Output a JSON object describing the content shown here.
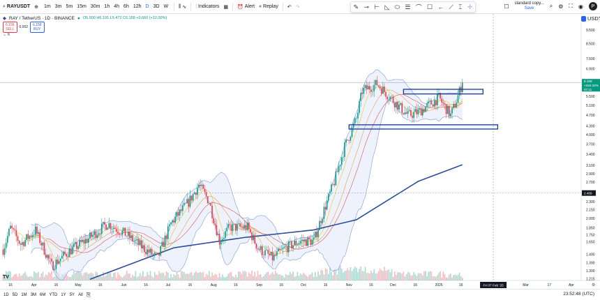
{
  "toolbar": {
    "symbol": "RAYUSDT",
    "intervals": [
      "1m",
      "3m",
      "5m",
      "15m",
      "30m",
      "1h",
      "4h",
      "6h",
      "12h",
      "D",
      "3D",
      "W"
    ],
    "active_interval": "D",
    "indicators": "Indicators",
    "alert": "Alert",
    "replay": "Replay",
    "layout_name": "standard copy...",
    "layout_status": "Save",
    "avatar": "P"
  },
  "legend": {
    "title": "RAY / TetherUS · 1D · BINANCE",
    "ohlc": "O5.500 H6.191 L5.472 C6.158 +0.660 (+12.00%)",
    "sell_price": "6.156",
    "sell_label": "SELL",
    "spread": "0.002",
    "buy_price": "6.158",
    "buy_label": "BUY",
    "collapse": "⌄ 6"
  },
  "currency": "USDT",
  "price_axis": {
    "labels": [
      "9.500",
      "8.500",
      "7.500",
      "6.900",
      "5.500",
      "5.100",
      "4.700",
      "4.300",
      "4.000",
      "3.700",
      "3.400",
      "3.100",
      "2.900",
      "2.700",
      "2.300",
      "2.150",
      "2.000",
      "1.850",
      "1.750",
      "1.650",
      "1.490",
      "1.390",
      "1.300",
      "1.215"
    ],
    "last_price": "6.158",
    "last_change": "+334.33%",
    "countdown": "07:11",
    "marker": "2.469"
  },
  "time_axis": {
    "labels": [
      [
        "2024-03-16",
        "16"
      ],
      [
        "2024-04-01",
        "Apr"
      ],
      [
        "2024-04-16",
        "16"
      ],
      [
        "2024-05-01",
        "May"
      ],
      [
        "2024-05-16",
        "16"
      ],
      [
        "2024-06-01",
        "Jun"
      ],
      [
        "2024-06-16",
        "16"
      ],
      [
        "2024-07-01",
        "Jul"
      ],
      [
        "2024-07-16",
        "16"
      ],
      [
        "2024-08-01",
        "Aug"
      ],
      [
        "2024-08-16",
        "16"
      ],
      [
        "2024-09-01",
        "Sep"
      ],
      [
        "2024-09-16",
        "16"
      ],
      [
        "2024-10-01",
        "Oct"
      ],
      [
        "2024-10-16",
        "16"
      ],
      [
        "2024-11-01",
        "Nov"
      ],
      [
        "2024-11-16",
        "16"
      ],
      [
        "2024-12-01",
        "Dec"
      ],
      [
        "2024-12-16",
        "16"
      ],
      [
        "2025-01-01",
        "2025"
      ],
      [
        "2025-01-16",
        "16"
      ],
      [
        "2025-03-01",
        "Mar"
      ],
      [
        "2025-03-17",
        "17"
      ],
      [
        "2025-04-01",
        "Apr"
      ]
    ],
    "cursor_date": "2025-02-07",
    "cursor_label": "Fri 07 Feb '25"
  },
  "ranges": [
    "1D",
    "5D",
    "1M",
    "3M",
    "6M",
    "YTD",
    "1Y",
    "5Y",
    "All"
  ],
  "clock": "23:52:48 (UTC)",
  "colors": {
    "up": "#089981",
    "down": "#f23645",
    "ma200": "#2a4e9c",
    "bands": "#8fa8e0",
    "ma_fast": "#f0c419",
    "ma_mid": "#e05050",
    "drawing": "#1a3a8f"
  },
  "chart_data": {
    "type": "candlestick",
    "scale": "log",
    "close_path": [
      [
        "2024-03-11",
        1.55
      ],
      [
        "2024-03-16",
        1.85
      ],
      [
        "2024-03-23",
        1.62
      ],
      [
        "2024-04-02",
        1.81
      ],
      [
        "2024-04-13",
        1.35
      ],
      [
        "2024-04-25",
        1.53
      ],
      [
        "2024-05-09",
        1.71
      ],
      [
        "2024-05-21",
        1.92
      ],
      [
        "2024-06-02",
        1.76
      ],
      [
        "2024-06-14",
        1.57
      ],
      [
        "2024-06-24",
        1.44
      ],
      [
        "2024-07-03",
        1.92
      ],
      [
        "2024-07-15",
        2.29
      ],
      [
        "2024-07-22",
        2.64
      ],
      [
        "2024-07-29",
        2.3
      ],
      [
        "2024-08-05",
        1.66
      ],
      [
        "2024-08-12",
        1.86
      ],
      [
        "2024-08-24",
        1.86
      ],
      [
        "2024-08-31",
        1.57
      ],
      [
        "2024-09-10",
        1.44
      ],
      [
        "2024-09-19",
        1.57
      ],
      [
        "2024-09-29",
        1.66
      ],
      [
        "2024-10-08",
        1.66
      ],
      [
        "2024-10-15",
        2.15
      ],
      [
        "2024-10-22",
        2.71
      ],
      [
        "2024-10-29",
        3.62
      ],
      [
        "2024-11-06",
        4.56
      ],
      [
        "2024-11-10",
        5.74
      ],
      [
        "2024-11-20",
        6.09
      ],
      [
        "2024-11-27",
        5.58
      ],
      [
        "2024-12-04",
        5.11
      ],
      [
        "2024-12-11",
        4.69
      ],
      [
        "2024-12-18",
        4.82
      ],
      [
        "2024-12-25",
        5.1
      ],
      [
        "2025-01-01",
        5.43
      ],
      [
        "2025-01-09",
        4.69
      ],
      [
        "2025-01-13",
        5.3
      ],
      [
        "2025-01-17",
        6.158
      ]
    ],
    "ma200": [
      [
        "2024-05-09",
        1.21
      ],
      [
        "2024-07-05",
        1.57
      ],
      [
        "2024-08-22",
        1.71
      ],
      [
        "2024-10-08",
        1.82
      ],
      [
        "2024-11-06",
        1.98
      ],
      [
        "2024-12-18",
        2.72
      ],
      [
        "2025-01-17",
        3.12
      ]
    ],
    "zones": [
      {
        "from": "2024-12-08",
        "to": "2025-01-31",
        "top": 5.82,
        "bottom": 5.6
      },
      {
        "from": "2024-11-01",
        "to": "2025-02-10",
        "top": 4.34,
        "bottom": 4.19
      }
    ]
  }
}
